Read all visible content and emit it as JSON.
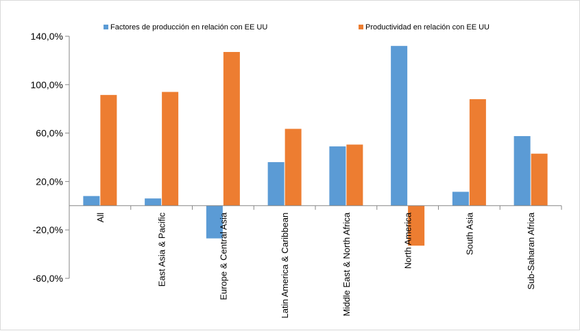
{
  "chart_data": {
    "type": "bar",
    "categories": [
      "All",
      "East Asia & Pacific",
      "Europe & Central Asia",
      "Latin America & Caribbean",
      "Middle East & North Africa",
      "North America",
      "South Asia",
      "Sub-Saharan Africa"
    ],
    "series": [
      {
        "name": "Factores de producción en relación con EE UU",
        "color": "#5b9bd5",
        "values": [
          8.0,
          6.0,
          -27.0,
          36.0,
          49.0,
          132.0,
          11.5,
          57.5
        ]
      },
      {
        "name": "Productividad en relación con EE UU",
        "color": "#ed7d31",
        "values": [
          91.5,
          94.0,
          127.0,
          63.5,
          50.5,
          -33.0,
          88.0,
          43.0
        ]
      }
    ],
    "yticks": [
      "140,0%",
      "100,0%",
      "60,0%",
      "20,0%",
      "-20,0%",
      "-60,0%"
    ],
    "ytick_values": [
      140,
      100,
      60,
      20,
      -20,
      -60
    ],
    "ylim": [
      -60,
      140
    ],
    "grid": false,
    "legend_position": "top"
  }
}
